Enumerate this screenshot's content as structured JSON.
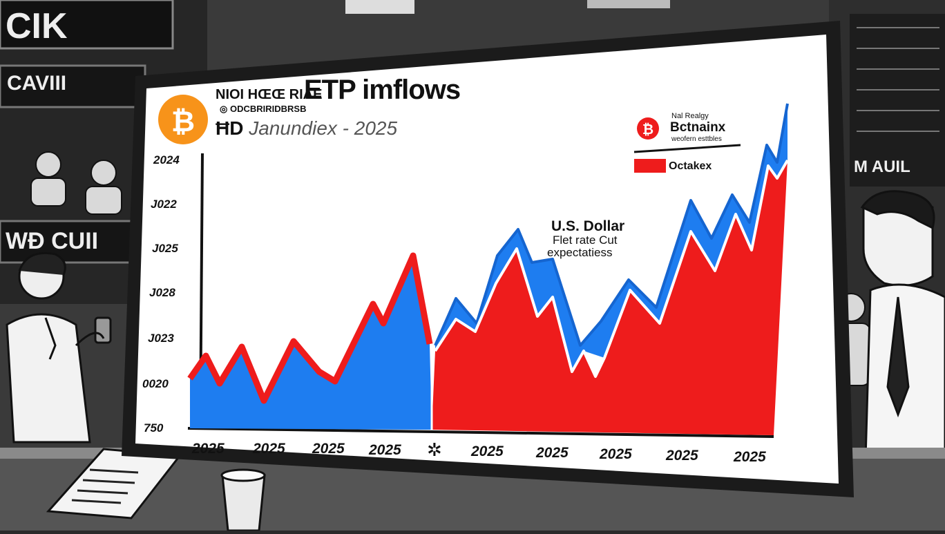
{
  "screen": {
    "title": "ETP imflows",
    "subtitle_line1": "NIOI HŒŒ RIAE",
    "subtitle_line2": "◎ ODCBRIRIDBRSB",
    "subtitle_prefix": "ĦD",
    "subtitle_text": "Janundiex - 2025",
    "legend_header": "Nal Realgy",
    "legend_a_label": "Bctnainx",
    "legend_a_sub": "weofern esttbles",
    "legend_b_label": "Octakex",
    "annotation_title": "U.S. Dollar",
    "annotation_line2": "Flet rate Cut",
    "annotation_line3": "expectatiess",
    "axis_break_glyph": "✲"
  },
  "signs": {
    "top_left": "CIK",
    "mid_left": "CAVIII",
    "lower_left": "WĐ CUII",
    "right": "M AUIL"
  },
  "colors": {
    "blue": "#1e7df0",
    "red": "#ee1c1c",
    "bitcoin": "#f7931a"
  },
  "chart_data": {
    "type": "area",
    "title": "ETP imflows",
    "y_tick_labels": [
      "2024",
      "J022",
      "J025",
      "J028",
      "J023",
      "0020",
      "750"
    ],
    "x_tick_labels": [
      "2025",
      "2025",
      "2025",
      "2025",
      "2025",
      "2025",
      "2025",
      "2025",
      "2025"
    ],
    "series": [
      {
        "name": "Bctnainx",
        "color": "#1e7df0"
      },
      {
        "name": "Octakex",
        "color": "#ee1c1c"
      }
    ],
    "legend_position": "top-right"
  }
}
